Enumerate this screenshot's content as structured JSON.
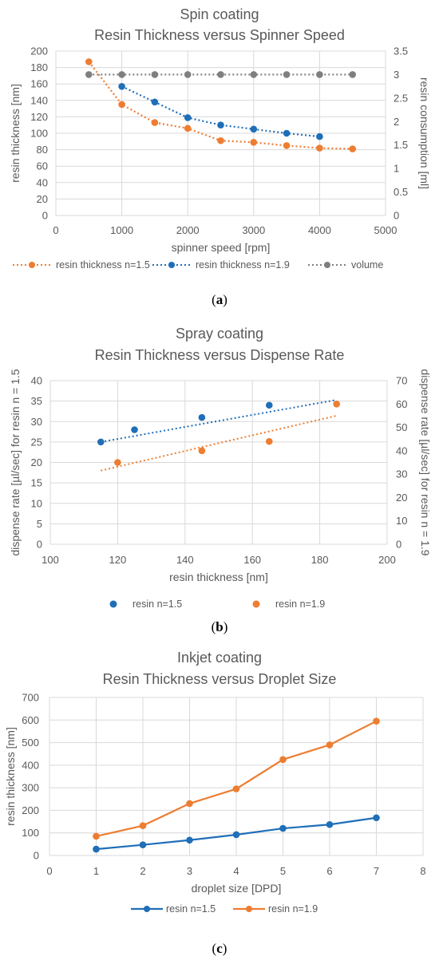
{
  "figure": {
    "captions": [
      "(a)",
      "(b)",
      "(c)"
    ]
  },
  "colors": {
    "orange": "#ED7D31",
    "blue": "#1F6EB8",
    "gray": "#7F7F7F",
    "grid": "#D9D9D9",
    "text": "#595959"
  },
  "chart_data": [
    {
      "type": "line",
      "title": [
        "Spin coating",
        "Resin Thickness versus Spinner Speed"
      ],
      "xlabel": "spinner speed [rpm]",
      "ylabel": "resin thickness [nm]",
      "y2label": "resin consumption [ml]",
      "xlim": [
        0,
        5000
      ],
      "ylim": [
        0,
        200
      ],
      "y2lim": [
        0,
        3.5
      ],
      "xticks": [
        "0",
        "1000",
        "2000",
        "3000",
        "4000",
        "5000"
      ],
      "yticks": [
        "0",
        "20",
        "40",
        "60",
        "80",
        "100",
        "120",
        "140",
        "160",
        "180",
        "200"
      ],
      "y2ticks": [
        "0",
        "0.5",
        "1",
        "1.5",
        "2",
        "2.5",
        "3",
        "3.5"
      ],
      "grid": true,
      "legend_position": "bottom",
      "series": [
        {
          "name": "resin thickness n=1.5",
          "color": "#ED7D31",
          "axis": "left",
          "style": "dotted",
          "x": [
            500,
            1000,
            1500,
            2000,
            2500,
            3000,
            3500,
            4000,
            4500
          ],
          "y": [
            187,
            135,
            113,
            106,
            91,
            89,
            85,
            82,
            81
          ]
        },
        {
          "name": "resin thickness n=1.9",
          "color": "#1F6EB8",
          "axis": "left",
          "style": "dotted",
          "x": [
            1000,
            1500,
            2000,
            2500,
            3000,
            3500,
            4000
          ],
          "y": [
            157,
            138,
            119,
            110,
            105,
            100,
            96
          ]
        },
        {
          "name": "volume",
          "color": "#7F7F7F",
          "axis": "right",
          "style": "dotted",
          "x": [
            500,
            1000,
            1500,
            2000,
            2500,
            3000,
            3500,
            4000,
            4500
          ],
          "y": [
            3,
            3,
            3,
            3,
            3,
            3,
            3,
            3,
            3
          ]
        }
      ]
    },
    {
      "type": "scatter",
      "title": [
        "Spray coating",
        "Resin Thickness versus Dispense Rate"
      ],
      "xlabel": "resin thickness [nm]",
      "ylabel": "dispense rate [µl/sec] for resin n = 1.5",
      "y2label": "dispense rate [µl/sec] for resin n = 1.9",
      "xlim": [
        100,
        200
      ],
      "ylim": [
        0,
        40
      ],
      "y2lim": [
        0,
        70
      ],
      "xticks": [
        "100",
        "120",
        "140",
        "160",
        "180",
        "200"
      ],
      "yticks": [
        "0",
        "5",
        "10",
        "15",
        "20",
        "25",
        "30",
        "35",
        "40"
      ],
      "y2ticks": [
        "0",
        "10",
        "20",
        "30",
        "40",
        "50",
        "60",
        "70"
      ],
      "grid": true,
      "legend_position": "bottom",
      "series": [
        {
          "name": "resin n=1.5",
          "color": "#1F6EB8",
          "axis": "left",
          "x": [
            115,
            125,
            145,
            165
          ],
          "y": [
            25,
            28,
            31,
            34
          ],
          "trendline": {
            "x": [
              115,
              185
            ],
            "y": [
              25,
              35.3
            ]
          }
        },
        {
          "name": "resin n=1.9",
          "color": "#ED7D31",
          "axis": "right",
          "x": [
            120,
            145,
            165,
            185
          ],
          "y": [
            35,
            40,
            44,
            60
          ],
          "trendline": {
            "x": [
              115,
              185
            ],
            "y": [
              31.5,
              55
            ]
          }
        }
      ]
    },
    {
      "type": "line",
      "title": [
        "Inkjet coating",
        "Resin Thickness versus Droplet Size"
      ],
      "xlabel": "droplet size [DPD]",
      "ylabel": "resin thickness [nm]",
      "xlim": [
        0,
        8
      ],
      "ylim": [
        0,
        700
      ],
      "xticks": [
        "0",
        "1",
        "2",
        "3",
        "4",
        "5",
        "6",
        "7",
        "8"
      ],
      "yticks": [
        "0",
        "100",
        "200",
        "300",
        "400",
        "500",
        "600",
        "700"
      ],
      "grid": true,
      "legend_position": "bottom",
      "series": [
        {
          "name": "resin n=1.5",
          "color": "#1F6EB8",
          "axis": "left",
          "style": "solid",
          "x": [
            1,
            2,
            3,
            4,
            5,
            6,
            7
          ],
          "y": [
            28,
            47,
            68,
            92,
            120,
            137,
            167
          ]
        },
        {
          "name": "resin n=1.9",
          "color": "#ED7D31",
          "axis": "left",
          "style": "solid",
          "x": [
            1,
            2,
            3,
            4,
            5,
            6,
            7
          ],
          "y": [
            85,
            132,
            230,
            295,
            425,
            490,
            595
          ]
        }
      ]
    }
  ]
}
